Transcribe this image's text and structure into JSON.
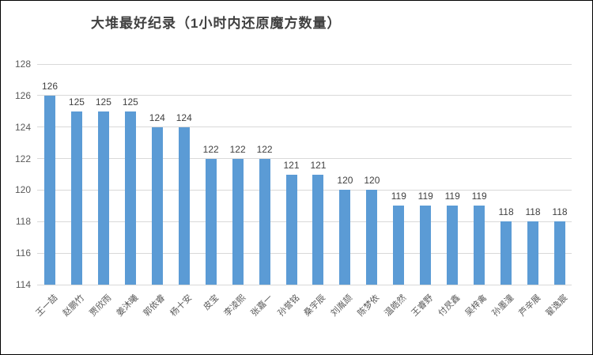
{
  "chart_data": {
    "type": "bar",
    "title": "大堆最好纪录（1小时内还原魔方数量）",
    "categories": [
      "王一喆",
      "赵鹏竹",
      "贾欣雨",
      "姜沐曦",
      "郭依睿",
      "杨十安",
      "皮宝",
      "李凌熙",
      "张嘉一",
      "孙誉铭",
      "桑宇辰",
      "刘胤颉",
      "陈梦依",
      "温皓然",
      "王睿野",
      "付昃鑫",
      "吴梓禽",
      "孙墨潼",
      "芦辛展",
      "翟逸宸"
    ],
    "values": [
      126,
      125,
      125,
      125,
      124,
      124,
      122,
      122,
      122,
      121,
      121,
      120,
      120,
      119,
      119,
      119,
      119,
      118,
      118,
      118
    ],
    "xlabel": "",
    "ylabel": "",
    "ylim": [
      114,
      128
    ],
    "yticks": [
      114,
      116,
      118,
      120,
      122,
      124,
      126,
      128
    ],
    "grid": true,
    "legend": "none",
    "data_labels": true,
    "bar_color": "#5b9bd5",
    "gridline_color": "#d9d9d9",
    "title_color": "#404040",
    "value_label_color": "#404040",
    "axis_label_color": "#595959"
  }
}
